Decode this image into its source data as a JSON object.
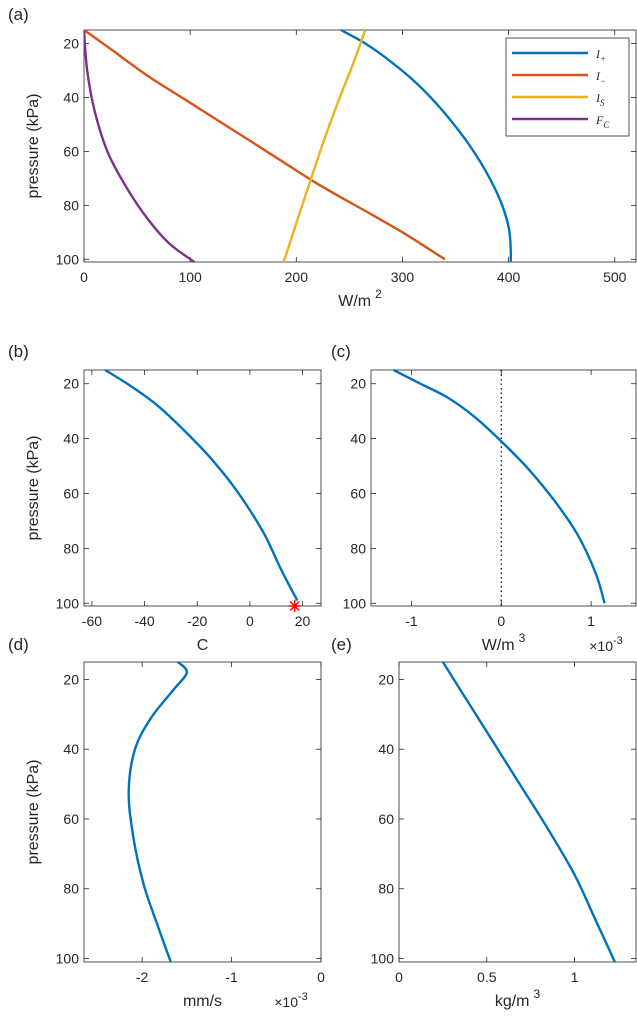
{
  "chart_data": [
    {
      "panel": "(a)",
      "type": "line",
      "xlabel": "W/m",
      "xlabel_sup": "2",
      "ylabel": "pressure (kPa)",
      "xlim": [
        0,
        520
      ],
      "ylim": [
        15,
        101
      ],
      "y_reversed": true,
      "xticks": [
        0,
        100,
        200,
        300,
        400,
        500
      ],
      "yticks": [
        20,
        40,
        60,
        80,
        100
      ],
      "legend_position": "top-right",
      "series": [
        {
          "name": "I+",
          "legend_main": "I",
          "legend_sub": "+",
          "color": "#0072BD",
          "x": [
            242,
            265,
            290,
            314,
            338,
            360,
            378,
            392,
            400,
            402,
            402
          ],
          "y": [
            15,
            20,
            27,
            35,
            45,
            56,
            67,
            78,
            88,
            96,
            101
          ]
        },
        {
          "name": "I-",
          "legend_main": "I",
          "legend_sub": "−",
          "color": "#D95319",
          "x": [
            0,
            25,
            60,
            100,
            140,
            180,
            220,
            260,
            300,
            340
          ],
          "y": [
            15,
            22,
            32,
            42,
            52,
            62,
            72,
            81,
            90,
            100
          ]
        },
        {
          "name": "IS",
          "legend_main": "I",
          "legend_sub": "S",
          "color": "#EDB120",
          "x": [
            265,
            254,
            240,
            226,
            214,
            203,
            194,
            188
          ],
          "y": [
            15,
            27,
            41,
            56,
            70,
            83,
            94,
            101
          ]
        },
        {
          "name": "FC",
          "legend_main": "F",
          "legend_sub": "C",
          "color": "#7E2F8E",
          "x": [
            0,
            3,
            10,
            22,
            38,
            58,
            80,
            104
          ],
          "y": [
            15,
            30,
            45,
            60,
            72,
            84,
            94,
            101
          ]
        }
      ]
    },
    {
      "panel": "(b)",
      "type": "line",
      "xlabel": "C",
      "ylabel": "pressure (kPa)",
      "xlim": [
        -63,
        27
      ],
      "ylim": [
        15,
        101
      ],
      "y_reversed": true,
      "xticks": [
        -60,
        -40,
        -20,
        0,
        20
      ],
      "yticks": [
        20,
        40,
        60,
        80,
        100
      ],
      "series": [
        {
          "color": "#0072BD",
          "x": [
            -55,
            -45,
            -35,
            -25,
            -15,
            -5,
            5,
            12,
            18
          ],
          "y": [
            15,
            21,
            28,
            37,
            47,
            59,
            74,
            88,
            99
          ]
        }
      ],
      "marker": {
        "x": 17,
        "y": 101,
        "color": "#FF0000"
      }
    },
    {
      "panel": "(c)",
      "type": "line",
      "xlabel": "W/m",
      "xlabel_sup": "3",
      "exponent_label": "×10",
      "exponent_sup": "-3",
      "xlim": [
        -1.45,
        1.5
      ],
      "ylim": [
        15,
        101
      ],
      "y_reversed": true,
      "xticks": [
        -1,
        0,
        1
      ],
      "yticks": [
        20,
        40,
        60,
        80,
        100
      ],
      "reference_line_x": 0,
      "series": [
        {
          "color": "#0072BD",
          "x": [
            -1.2,
            -0.9,
            -0.6,
            -0.3,
            0,
            0.3,
            0.6,
            0.85,
            1.05,
            1.15
          ],
          "y": [
            15,
            20,
            25,
            32,
            41,
            51,
            63,
            75,
            89,
            100
          ]
        }
      ]
    },
    {
      "panel": "(d)",
      "type": "line",
      "xlabel": "mm/s",
      "exponent_label": "×10",
      "exponent_sup": "-3",
      "ylabel": "pressure (kPa)",
      "xlim": [
        -2.65,
        0
      ],
      "ylim": [
        15,
        101
      ],
      "y_reversed": true,
      "xticks": [
        -2,
        -1,
        0
      ],
      "yticks": [
        20,
        40,
        60,
        80,
        100
      ],
      "series": [
        {
          "color": "#0072BD",
          "x": [
            -1.6,
            -1.5,
            -1.65,
            -1.9,
            -2.08,
            -2.15,
            -2.1,
            -1.98,
            -1.82,
            -1.68
          ],
          "y": [
            15,
            18,
            23,
            31,
            40,
            52,
            65,
            79,
            91,
            101
          ]
        }
      ]
    },
    {
      "panel": "(e)",
      "type": "line",
      "xlabel": "kg/m",
      "xlabel_sup": "3",
      "xlim": [
        0,
        1.35
      ],
      "ylim": [
        15,
        101
      ],
      "y_reversed": true,
      "xticks": [
        0,
        0.5,
        1
      ],
      "yticks": [
        20,
        40,
        60,
        80,
        100
      ],
      "series": [
        {
          "color": "#0072BD",
          "x": [
            0.25,
            0.4,
            0.55,
            0.7,
            0.85,
            1.0,
            1.12,
            1.23
          ],
          "y": [
            15,
            27,
            39,
            51,
            63,
            76,
            89,
            101
          ]
        }
      ]
    }
  ]
}
